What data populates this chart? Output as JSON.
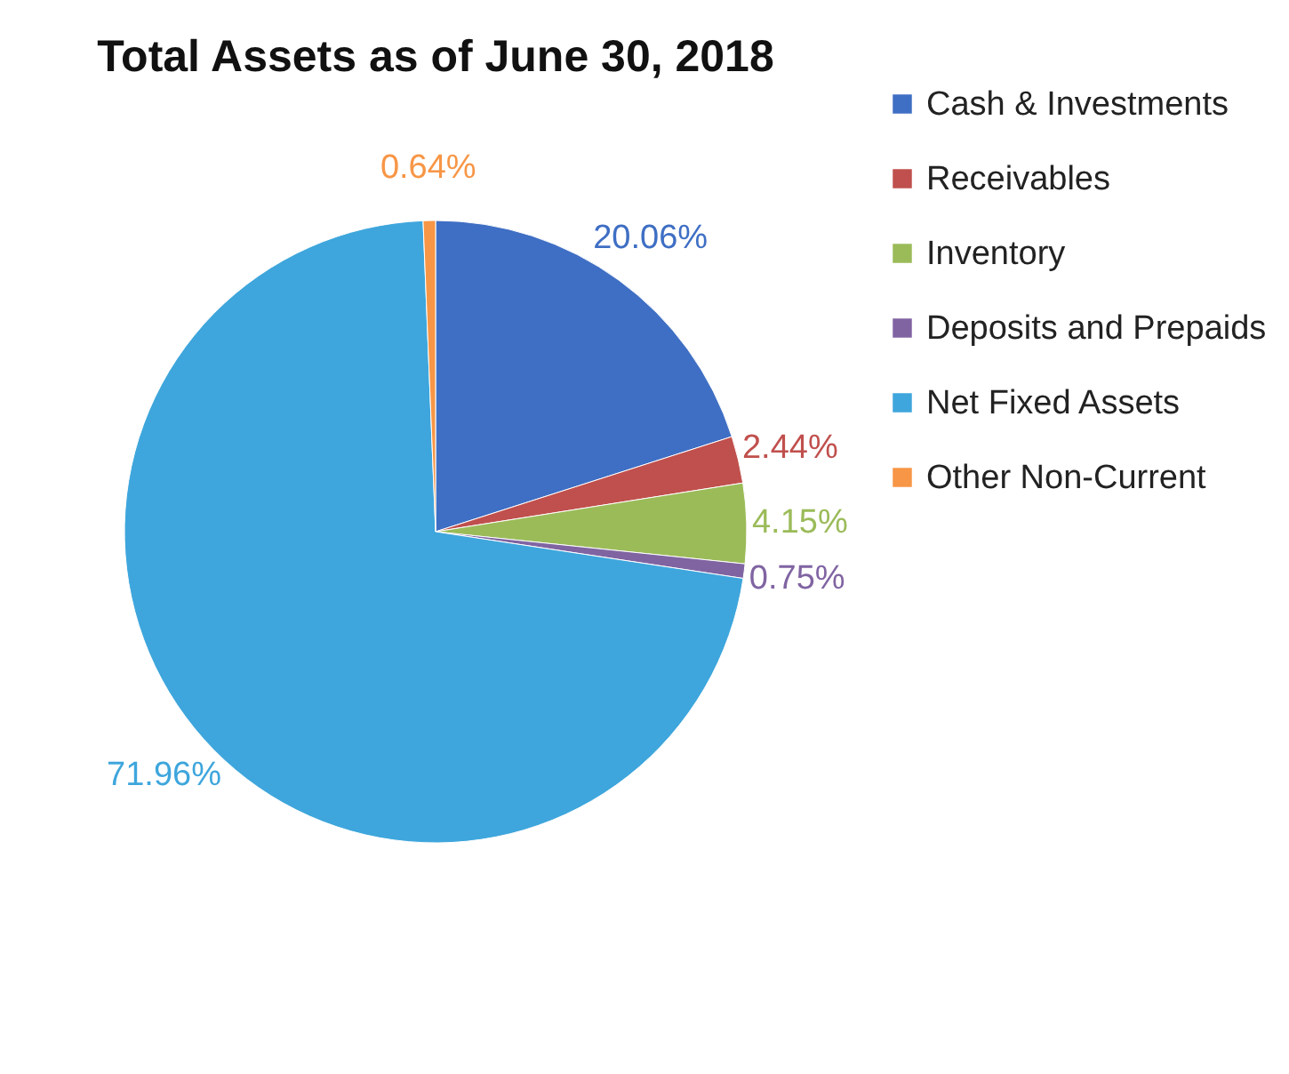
{
  "chart_data": {
    "type": "pie",
    "title": "Total Assets as of June 30, 2018",
    "categories": [
      "Cash & Investments",
      "Receivables",
      "Inventory",
      "Deposits and Prepaids",
      "Net Fixed Assets",
      "Other Non-Current"
    ],
    "values": [
      20.06,
      2.44,
      4.15,
      0.75,
      71.96,
      0.64
    ],
    "colors": [
      "#3f6fc4",
      "#c0504d",
      "#9bbb59",
      "#8064a2",
      "#3ea6dc",
      "#f79646"
    ],
    "value_labels": [
      "20.06%",
      "2.44%",
      "4.15%",
      "0.75%",
      "71.96%",
      "0.64%"
    ],
    "legend": "right"
  }
}
